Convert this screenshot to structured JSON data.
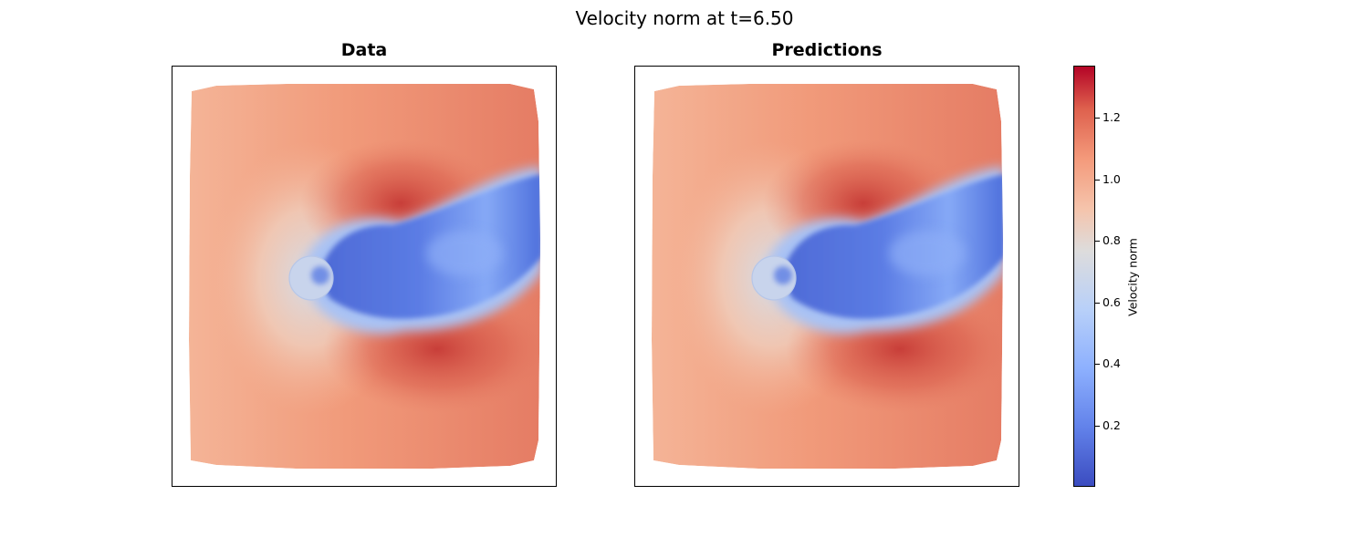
{
  "figure": {
    "suptitle": "Velocity norm at t=6.50"
  },
  "chart_data": {
    "type": "heatmap",
    "quantity": "Velocity norm",
    "time": 6.5,
    "panels": [
      {
        "title": "Data"
      },
      {
        "title": "Predictions"
      }
    ],
    "colormap": "coolwarm",
    "colorbar": {
      "label": "Velocity norm",
      "range": [
        0.0,
        1.37
      ],
      "ticks": [
        0.2,
        0.4,
        0.6,
        0.8,
        1.0,
        1.2
      ],
      "tick_labels": [
        "0.2",
        "0.4",
        "0.6",
        "0.8",
        "1.0",
        "1.2"
      ]
    },
    "axes_ticks_visible": false
  },
  "colors": {
    "low": "#3b4cc0",
    "mid": "#dddcdc",
    "high": "#b40426",
    "far_field": "#f2a083",
    "wake": "#5a78e0"
  }
}
